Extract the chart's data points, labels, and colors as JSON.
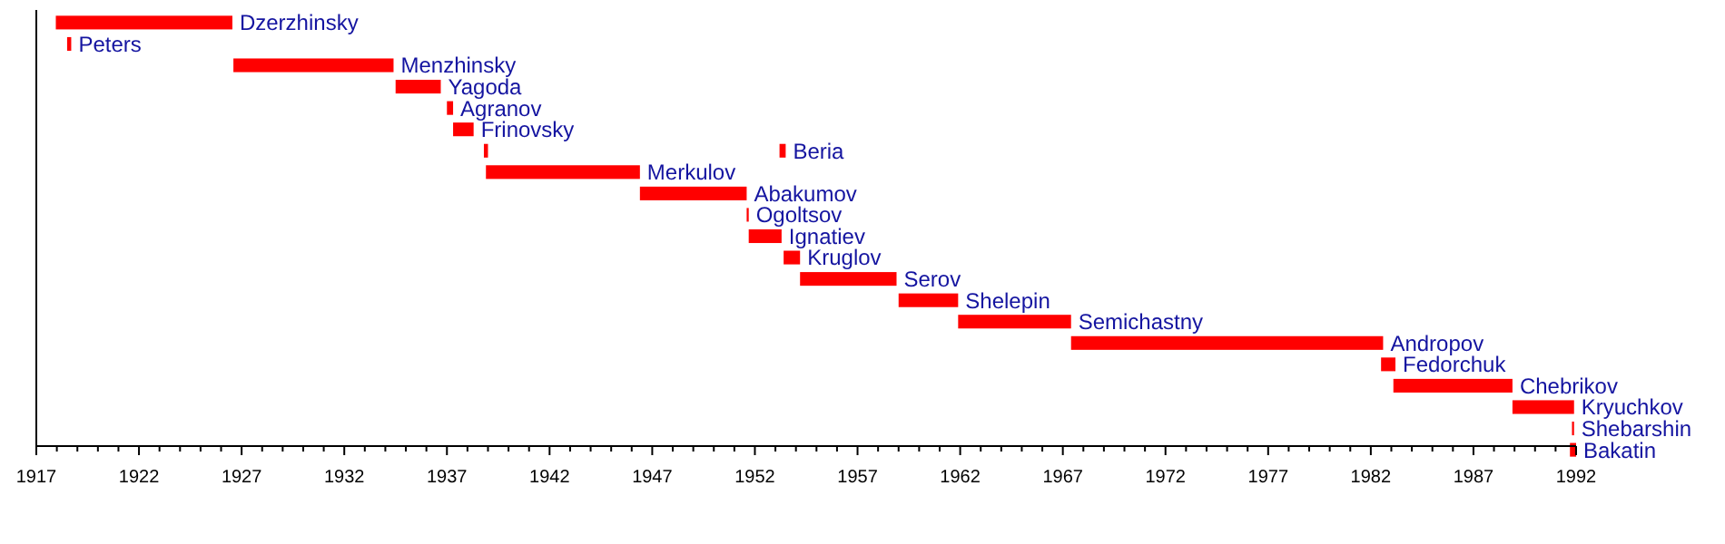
{
  "chart_data": {
    "type": "bar",
    "orientation": "horizontal",
    "categories": [
      "Dzerzhinsky",
      "Peters",
      "Menzhinsky",
      "Yagoda",
      "Agranov",
      "Frinovsky",
      "Beria",
      "Merkulov",
      "Abakumov",
      "Ogoltsov",
      "Ignatiev",
      "Kruglov",
      "Serov",
      "Shelepin",
      "Semichastny",
      "Andropov",
      "Fedorchuk",
      "Chebrikov",
      "Kryuchkov",
      "Shebarshin",
      "Bakatin"
    ],
    "series": [
      {
        "color": "#ff0000",
        "base": [
          1917.95,
          1918.5,
          1926.6,
          1934.5,
          1937.0,
          1937.3,
          1938.8,
          1938.9,
          1946.4,
          1951.6,
          1951.7,
          1953.4,
          1954.2,
          1959.0,
          1961.9,
          1967.4,
          1982.5,
          1983.1,
          1988.9,
          1991.8,
          1991.7
        ],
        "values": [
          8.6,
          0.2,
          7.8,
          2.2,
          0.3,
          1.0,
          0.2,
          7.5,
          5.2,
          0.1,
          1.6,
          0.8,
          4.7,
          2.9,
          5.5,
          15.2,
          0.7,
          5.8,
          3.0,
          0.1,
          0.3
        ]
      },
      {
        "color": "#ff0000",
        "base": [
          null,
          null,
          null,
          null,
          null,
          null,
          1953.2,
          null,
          null,
          null,
          null,
          null,
          null,
          null,
          null,
          null,
          null,
          null,
          null,
          null,
          null
        ],
        "values": [
          null,
          null,
          null,
          null,
          null,
          null,
          0.3,
          null,
          null,
          null,
          null,
          null,
          null,
          null,
          null,
          null,
          null,
          null,
          null,
          null,
          null
        ]
      }
    ],
    "xlim": [
      1917,
      1992
    ],
    "xticks": [
      1917,
      {
        "value": 1918,
        "label": null
      },
      {
        "value": 1919,
        "label": null
      },
      {
        "value": 1920,
        "label": null
      },
      {
        "value": 1921,
        "label": null
      },
      1922,
      {
        "value": 1923,
        "label": null
      },
      {
        "value": 1924,
        "label": null
      },
      {
        "value": 1925,
        "label": null
      },
      {
        "value": 1926,
        "label": null
      },
      1927,
      {
        "value": 1928,
        "label": null
      },
      {
        "value": 1929,
        "label": null
      },
      {
        "value": 1930,
        "label": null
      },
      {
        "value": 1931,
        "label": null
      },
      1932,
      {
        "value": 1933,
        "label": null
      },
      {
        "value": 1934,
        "label": null
      },
      {
        "value": 1935,
        "label": null
      },
      {
        "value": 1936,
        "label": null
      },
      1937,
      {
        "value": 1938,
        "label": null
      },
      {
        "value": 1939,
        "label": null
      },
      {
        "value": 1940,
        "label": null
      },
      {
        "value": 1941,
        "label": null
      },
      1942,
      {
        "value": 1943,
        "label": null
      },
      {
        "value": 1944,
        "label": null
      },
      {
        "value": 1945,
        "label": null
      },
      {
        "value": 1946,
        "label": null
      },
      1947,
      {
        "value": 1948,
        "label": null
      },
      {
        "value": 1949,
        "label": null
      },
      {
        "value": 1950,
        "label": null
      },
      {
        "value": 1951,
        "label": null
      },
      1952,
      {
        "value": 1953,
        "label": null
      },
      {
        "value": 1954,
        "label": null
      },
      {
        "value": 1955,
        "label": null
      },
      {
        "value": 1956,
        "label": null
      },
      1957,
      {
        "value": 1958,
        "label": null
      },
      {
        "value": 1959,
        "label": null
      },
      {
        "value": 1960,
        "label": null
      },
      {
        "value": 1961,
        "label": null
      },
      1962,
      {
        "value": 1963,
        "label": null
      },
      {
        "value": 1964,
        "label": null
      },
      {
        "value": 1965,
        "label": null
      },
      {
        "value": 1966,
        "label": null
      },
      1967,
      {
        "value": 1968,
        "label": null
      },
      {
        "value": 1969,
        "label": null
      },
      {
        "value": 1970,
        "label": null
      },
      {
        "value": 1971,
        "label": null
      },
      1972,
      {
        "value": 1973,
        "label": null
      },
      {
        "value": 1974,
        "label": null
      },
      {
        "value": 1975,
        "label": null
      },
      {
        "value": 1976,
        "label": null
      },
      1977,
      {
        "value": 1978,
        "label": null
      },
      {
        "value": 1979,
        "label": null
      },
      {
        "value": 1980,
        "label": null
      },
      {
        "value": 1981,
        "label": null
      },
      1982,
      {
        "value": 1983,
        "label": null
      },
      {
        "value": 1984,
        "label": null
      },
      {
        "value": 1985,
        "label": null
      },
      {
        "value": 1986,
        "label": null
      },
      1987,
      {
        "value": 1988,
        "label": null
      },
      {
        "value": 1989,
        "label": null
      },
      {
        "value": 1990,
        "label": null
      },
      {
        "value": 1991,
        "label": null
      },
      1992
    ],
    "grid": false
  }
}
